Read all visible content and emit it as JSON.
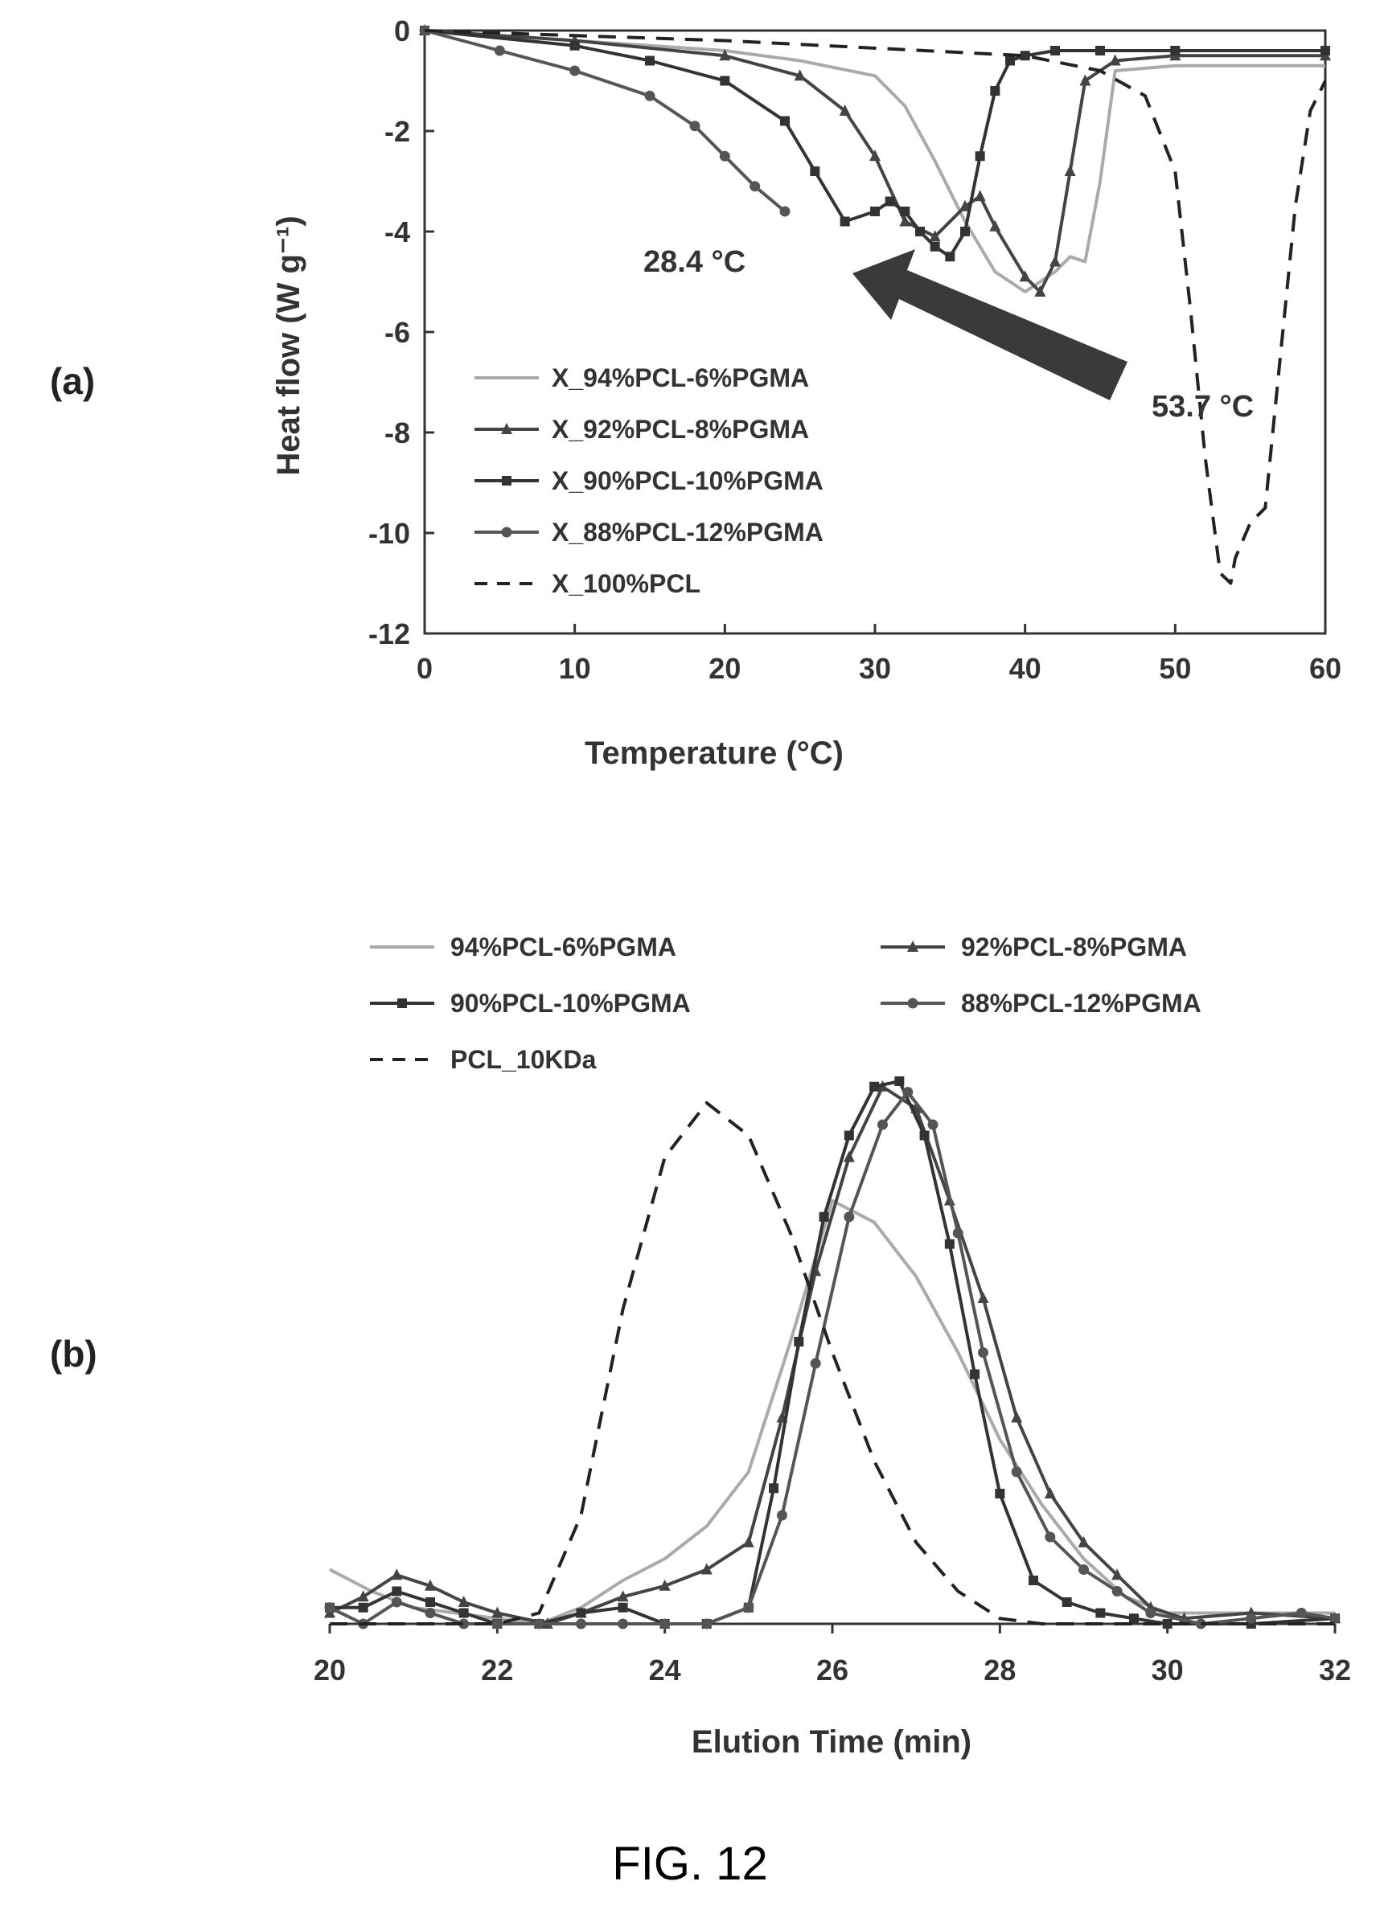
{
  "figure_caption": "FIG. 12",
  "chart_data": [
    {
      "panel_label": "(a)",
      "type": "line",
      "xlabel": "Temperature (°C)",
      "ylabel": "Heat flow (W g⁻¹)",
      "xlim": [
        0,
        60
      ],
      "ylim": [
        -12,
        0
      ],
      "xticks": [
        "0",
        "10",
        "20",
        "30",
        "40",
        "50",
        "60"
      ],
      "yticks": [
        "0",
        "-2",
        "-4",
        "-6",
        "-8",
        "-10",
        "-12"
      ],
      "legend_position": "bottom-left",
      "annotations": [
        {
          "text": "28.4 °C",
          "x": 28.4
        },
        {
          "text": "53.7 °C",
          "x": 53.7
        }
      ],
      "series": [
        {
          "name": "X_94%PCL-6%PGMA",
          "color": "#aaaaaa",
          "dash": "solid",
          "marker": "none",
          "x": [
            0,
            10,
            20,
            25,
            30,
            32,
            34,
            36,
            38,
            40,
            42,
            43,
            44,
            45,
            46,
            50,
            60
          ],
          "y": [
            0,
            -0.2,
            -0.4,
            -0.6,
            -0.9,
            -1.5,
            -2.6,
            -3.8,
            -4.8,
            -5.2,
            -4.8,
            -4.5,
            -4.6,
            -3.0,
            -0.8,
            -0.7,
            -0.7
          ]
        },
        {
          "name": "X_92%PCL-8%PGMA",
          "color": "#444444",
          "dash": "solid",
          "marker": "triangle",
          "x": [
            0,
            10,
            20,
            25,
            28,
            30,
            32,
            34,
            36,
            37,
            38,
            40,
            41,
            42,
            43,
            44,
            46,
            50,
            60
          ],
          "y": [
            0,
            -0.2,
            -0.5,
            -0.9,
            -1.6,
            -2.5,
            -3.8,
            -4.1,
            -3.5,
            -3.3,
            -3.9,
            -4.9,
            -5.2,
            -4.6,
            -2.8,
            -1.0,
            -0.6,
            -0.5,
            -0.5
          ]
        },
        {
          "name": "X_90%PCL-10%PGMA",
          "color": "#333333",
          "dash": "solid",
          "marker": "square",
          "x": [
            0,
            10,
            15,
            20,
            24,
            26,
            28,
            30,
            31,
            32,
            33,
            34,
            35,
            36,
            37,
            38,
            39,
            40,
            42,
            45,
            50,
            60
          ],
          "y": [
            0,
            -0.3,
            -0.6,
            -1.0,
            -1.8,
            -2.8,
            -3.8,
            -3.6,
            -3.4,
            -3.6,
            -4.0,
            -4.3,
            -4.5,
            -4.0,
            -2.5,
            -1.2,
            -0.6,
            -0.5,
            -0.4,
            -0.4,
            -0.4,
            -0.4
          ]
        },
        {
          "name": "X_88%PCL-12%PGMA",
          "color": "#555555",
          "dash": "solid",
          "marker": "circle",
          "x": [
            0,
            5,
            10,
            15,
            18,
            20,
            22,
            24
          ],
          "y": [
            0,
            -0.4,
            -0.8,
            -1.3,
            -1.9,
            -2.5,
            -3.1,
            -3.6
          ]
        },
        {
          "name": "X_100%PCL",
          "color": "#222222",
          "dash": "dashed",
          "marker": "none",
          "x": [
            0,
            20,
            40,
            45,
            48,
            50,
            51,
            52,
            53,
            53.7,
            54,
            55,
            56,
            57,
            58,
            59,
            60
          ],
          "y": [
            0,
            -0.2,
            -0.5,
            -0.8,
            -1.3,
            -2.8,
            -5.5,
            -8.5,
            -10.8,
            -11.0,
            -10.5,
            -9.8,
            -9.5,
            -6.5,
            -3.5,
            -1.6,
            -1.0
          ]
        }
      ]
    },
    {
      "panel_label": "(b)",
      "type": "line",
      "xlabel": "Elution Time (min)",
      "ylabel": "",
      "xlim": [
        20,
        32
      ],
      "ylim": [
        0,
        1
      ],
      "xticks": [
        "20",
        "22",
        "24",
        "26",
        "28",
        "30",
        "32"
      ],
      "legend_position": "top",
      "series": [
        {
          "name": "94%PCL-6%PGMA",
          "color": "#aaaaaa",
          "dash": "solid",
          "marker": "none",
          "x": [
            20,
            20.5,
            21,
            21.5,
            22,
            22.5,
            23,
            23.5,
            24,
            24.5,
            25,
            25.5,
            26,
            26.5,
            27,
            27.5,
            28,
            28.5,
            29,
            29.5,
            30,
            31,
            32
          ],
          "y": [
            0.1,
            0.06,
            0.03,
            0.02,
            0.01,
            0.0,
            0.03,
            0.08,
            0.12,
            0.18,
            0.28,
            0.52,
            0.78,
            0.74,
            0.64,
            0.5,
            0.34,
            0.22,
            0.12,
            0.05,
            0.02,
            0.02,
            0.02
          ]
        },
        {
          "name": "92%PCL-8%PGMA",
          "color": "#444444",
          "dash": "solid",
          "marker": "triangle",
          "x": [
            20,
            20.4,
            20.8,
            21.2,
            21.6,
            22,
            22.6,
            23,
            23.5,
            24,
            24.5,
            25,
            25.4,
            25.8,
            26.2,
            26.6,
            27,
            27.4,
            27.8,
            28.2,
            28.6,
            29,
            29.4,
            29.8,
            30.2,
            31,
            32
          ],
          "y": [
            0.02,
            0.05,
            0.09,
            0.07,
            0.04,
            0.02,
            0.0,
            0.02,
            0.05,
            0.07,
            0.1,
            0.15,
            0.38,
            0.65,
            0.86,
            0.99,
            0.95,
            0.78,
            0.6,
            0.38,
            0.24,
            0.15,
            0.09,
            0.03,
            0.01,
            0.02,
            0.01
          ]
        },
        {
          "name": "90%PCL-10%PGMA",
          "color": "#333333",
          "dash": "solid",
          "marker": "square",
          "x": [
            20,
            20.4,
            20.8,
            21.2,
            21.6,
            22,
            22.5,
            23,
            23.5,
            24,
            24.5,
            25,
            25.3,
            25.6,
            25.9,
            26.2,
            26.5,
            26.8,
            27.1,
            27.4,
            27.7,
            28,
            28.4,
            28.8,
            29.2,
            29.6,
            30,
            31,
            32
          ],
          "y": [
            0.03,
            0.03,
            0.06,
            0.04,
            0.02,
            0.0,
            0.0,
            0.02,
            0.03,
            0.0,
            0.0,
            0.03,
            0.25,
            0.52,
            0.75,
            0.9,
            0.99,
            1.0,
            0.9,
            0.7,
            0.46,
            0.24,
            0.08,
            0.04,
            0.02,
            0.01,
            0.0,
            0.0,
            0.01
          ]
        },
        {
          "name": "88%PCL-12%PGMA",
          "color": "#555555",
          "dash": "solid",
          "marker": "circle",
          "x": [
            20,
            20.4,
            20.8,
            21.2,
            21.6,
            22,
            22.5,
            23,
            23.5,
            24,
            24.5,
            25,
            25.4,
            25.8,
            26.2,
            26.6,
            26.9,
            27.2,
            27.5,
            27.8,
            28.2,
            28.6,
            29,
            29.4,
            29.8,
            30.4,
            31,
            31.6,
            32
          ],
          "y": [
            0.03,
            0.0,
            0.04,
            0.02,
            0.0,
            0.0,
            0.0,
            0.0,
            0.0,
            0.0,
            0.0,
            0.03,
            0.2,
            0.48,
            0.75,
            0.92,
            0.98,
            0.92,
            0.72,
            0.5,
            0.28,
            0.16,
            0.1,
            0.06,
            0.02,
            0.0,
            0.01,
            0.02,
            0.01
          ]
        },
        {
          "name": "PCL_10KDa",
          "color": "#222222",
          "dash": "dashed",
          "marker": "none",
          "x": [
            20,
            22,
            22.5,
            23,
            23.5,
            24,
            24.5,
            25,
            25.5,
            26,
            26.5,
            27,
            27.5,
            28,
            28.5,
            29,
            30,
            32
          ],
          "y": [
            0,
            0,
            0.02,
            0.2,
            0.58,
            0.86,
            0.96,
            0.9,
            0.72,
            0.5,
            0.3,
            0.15,
            0.06,
            0.01,
            0.0,
            0.0,
            0.0,
            0.0
          ]
        }
      ]
    }
  ]
}
